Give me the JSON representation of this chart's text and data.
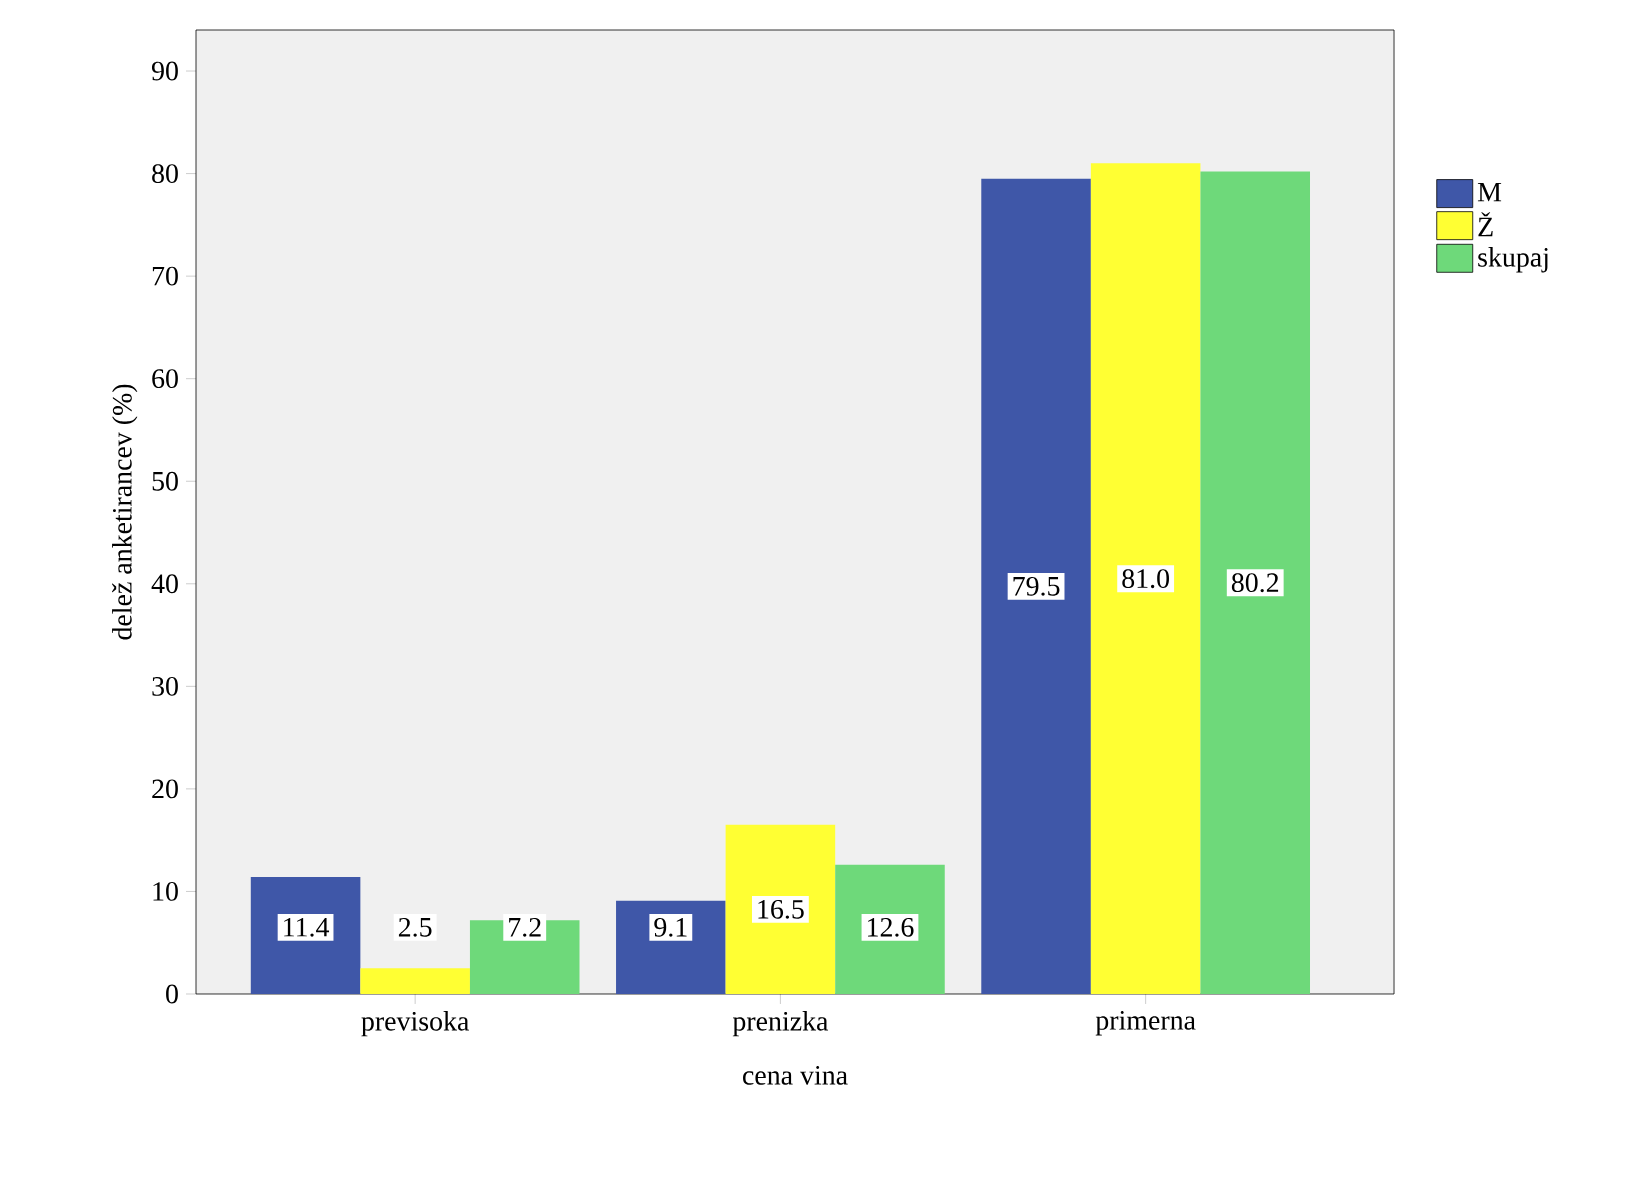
{
  "chart_data": {
    "type": "bar",
    "xlabel": "cena vina",
    "ylabel": "delež anketirancev (%)",
    "categories": [
      "previsoka",
      "prenizka",
      "primerna"
    ],
    "series": [
      {
        "name": "M",
        "color": "#3f57a8",
        "values": [
          11.4,
          9.1,
          79.5
        ],
        "value_labels": [
          "11.4",
          "9.1",
          "79.5"
        ]
      },
      {
        "name": "Ž",
        "color": "#ffff33",
        "values": [
          2.5,
          16.5,
          81.0
        ],
        "value_labels": [
          "2.5",
          "16.5",
          "81.0"
        ]
      },
      {
        "name": "skupaj",
        "color": "#6ed97a",
        "values": [
          7.2,
          12.6,
          80.2
        ],
        "value_labels": [
          "7.2",
          "12.6",
          "80.2"
        ]
      }
    ],
    "ylim": [
      0,
      94
    ],
    "yticks": [
      0,
      10,
      20,
      30,
      40,
      50,
      60,
      70,
      80,
      90
    ],
    "legend": "right",
    "grid": false
  }
}
